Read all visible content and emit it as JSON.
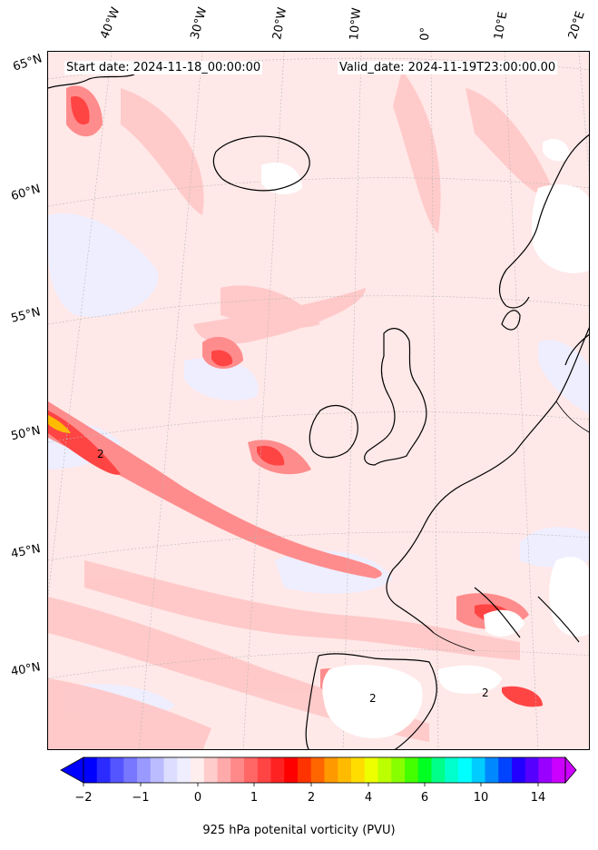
{
  "header": {
    "start_date": "Start date: 2024-11-18_00:00:00",
    "valid_date": "Valid_date: 2024-11-19T23:00:00.00"
  },
  "longitude_labels": [
    "40°W",
    "30°W",
    "20°W",
    "10°W",
    "0°",
    "10°E",
    "20°E"
  ],
  "latitude_labels": [
    "65°N",
    "60°N",
    "55°N",
    "50°N",
    "45°N",
    "40°N"
  ],
  "contour_labels": [
    "2",
    "2",
    "2"
  ],
  "colorbar": {
    "label": "925 hPa potenital vorticity (PVU)",
    "ticks": [
      "−2",
      "−1",
      "0",
      "1",
      "2",
      "4",
      "6",
      "10",
      "14"
    ],
    "colors": [
      "#0000ff",
      "#2b2bff",
      "#5555ff",
      "#7777ff",
      "#9999ff",
      "#bbbbff",
      "#ddddff",
      "#eeeeff",
      "#ffeeee",
      "#ffcccc",
      "#ffaaaa",
      "#ff8888",
      "#ff6666",
      "#ff4444",
      "#ff2222",
      "#ff0000",
      "#ff3300",
      "#ff6600",
      "#ff9900",
      "#ffbb00",
      "#ffdd00",
      "#eeff00",
      "#bbff00",
      "#88ff00",
      "#44ff00",
      "#00ff22",
      "#00ff88",
      "#00ffcc",
      "#00ffff",
      "#00ccff",
      "#0088ff",
      "#0044ff",
      "#2200ff",
      "#5500ff",
      "#9900ff",
      "#cc00ff"
    ]
  },
  "colors": {
    "background_pv": "#ffe8e8",
    "land_line": "#000000",
    "graticule": "#b8b8b8"
  }
}
